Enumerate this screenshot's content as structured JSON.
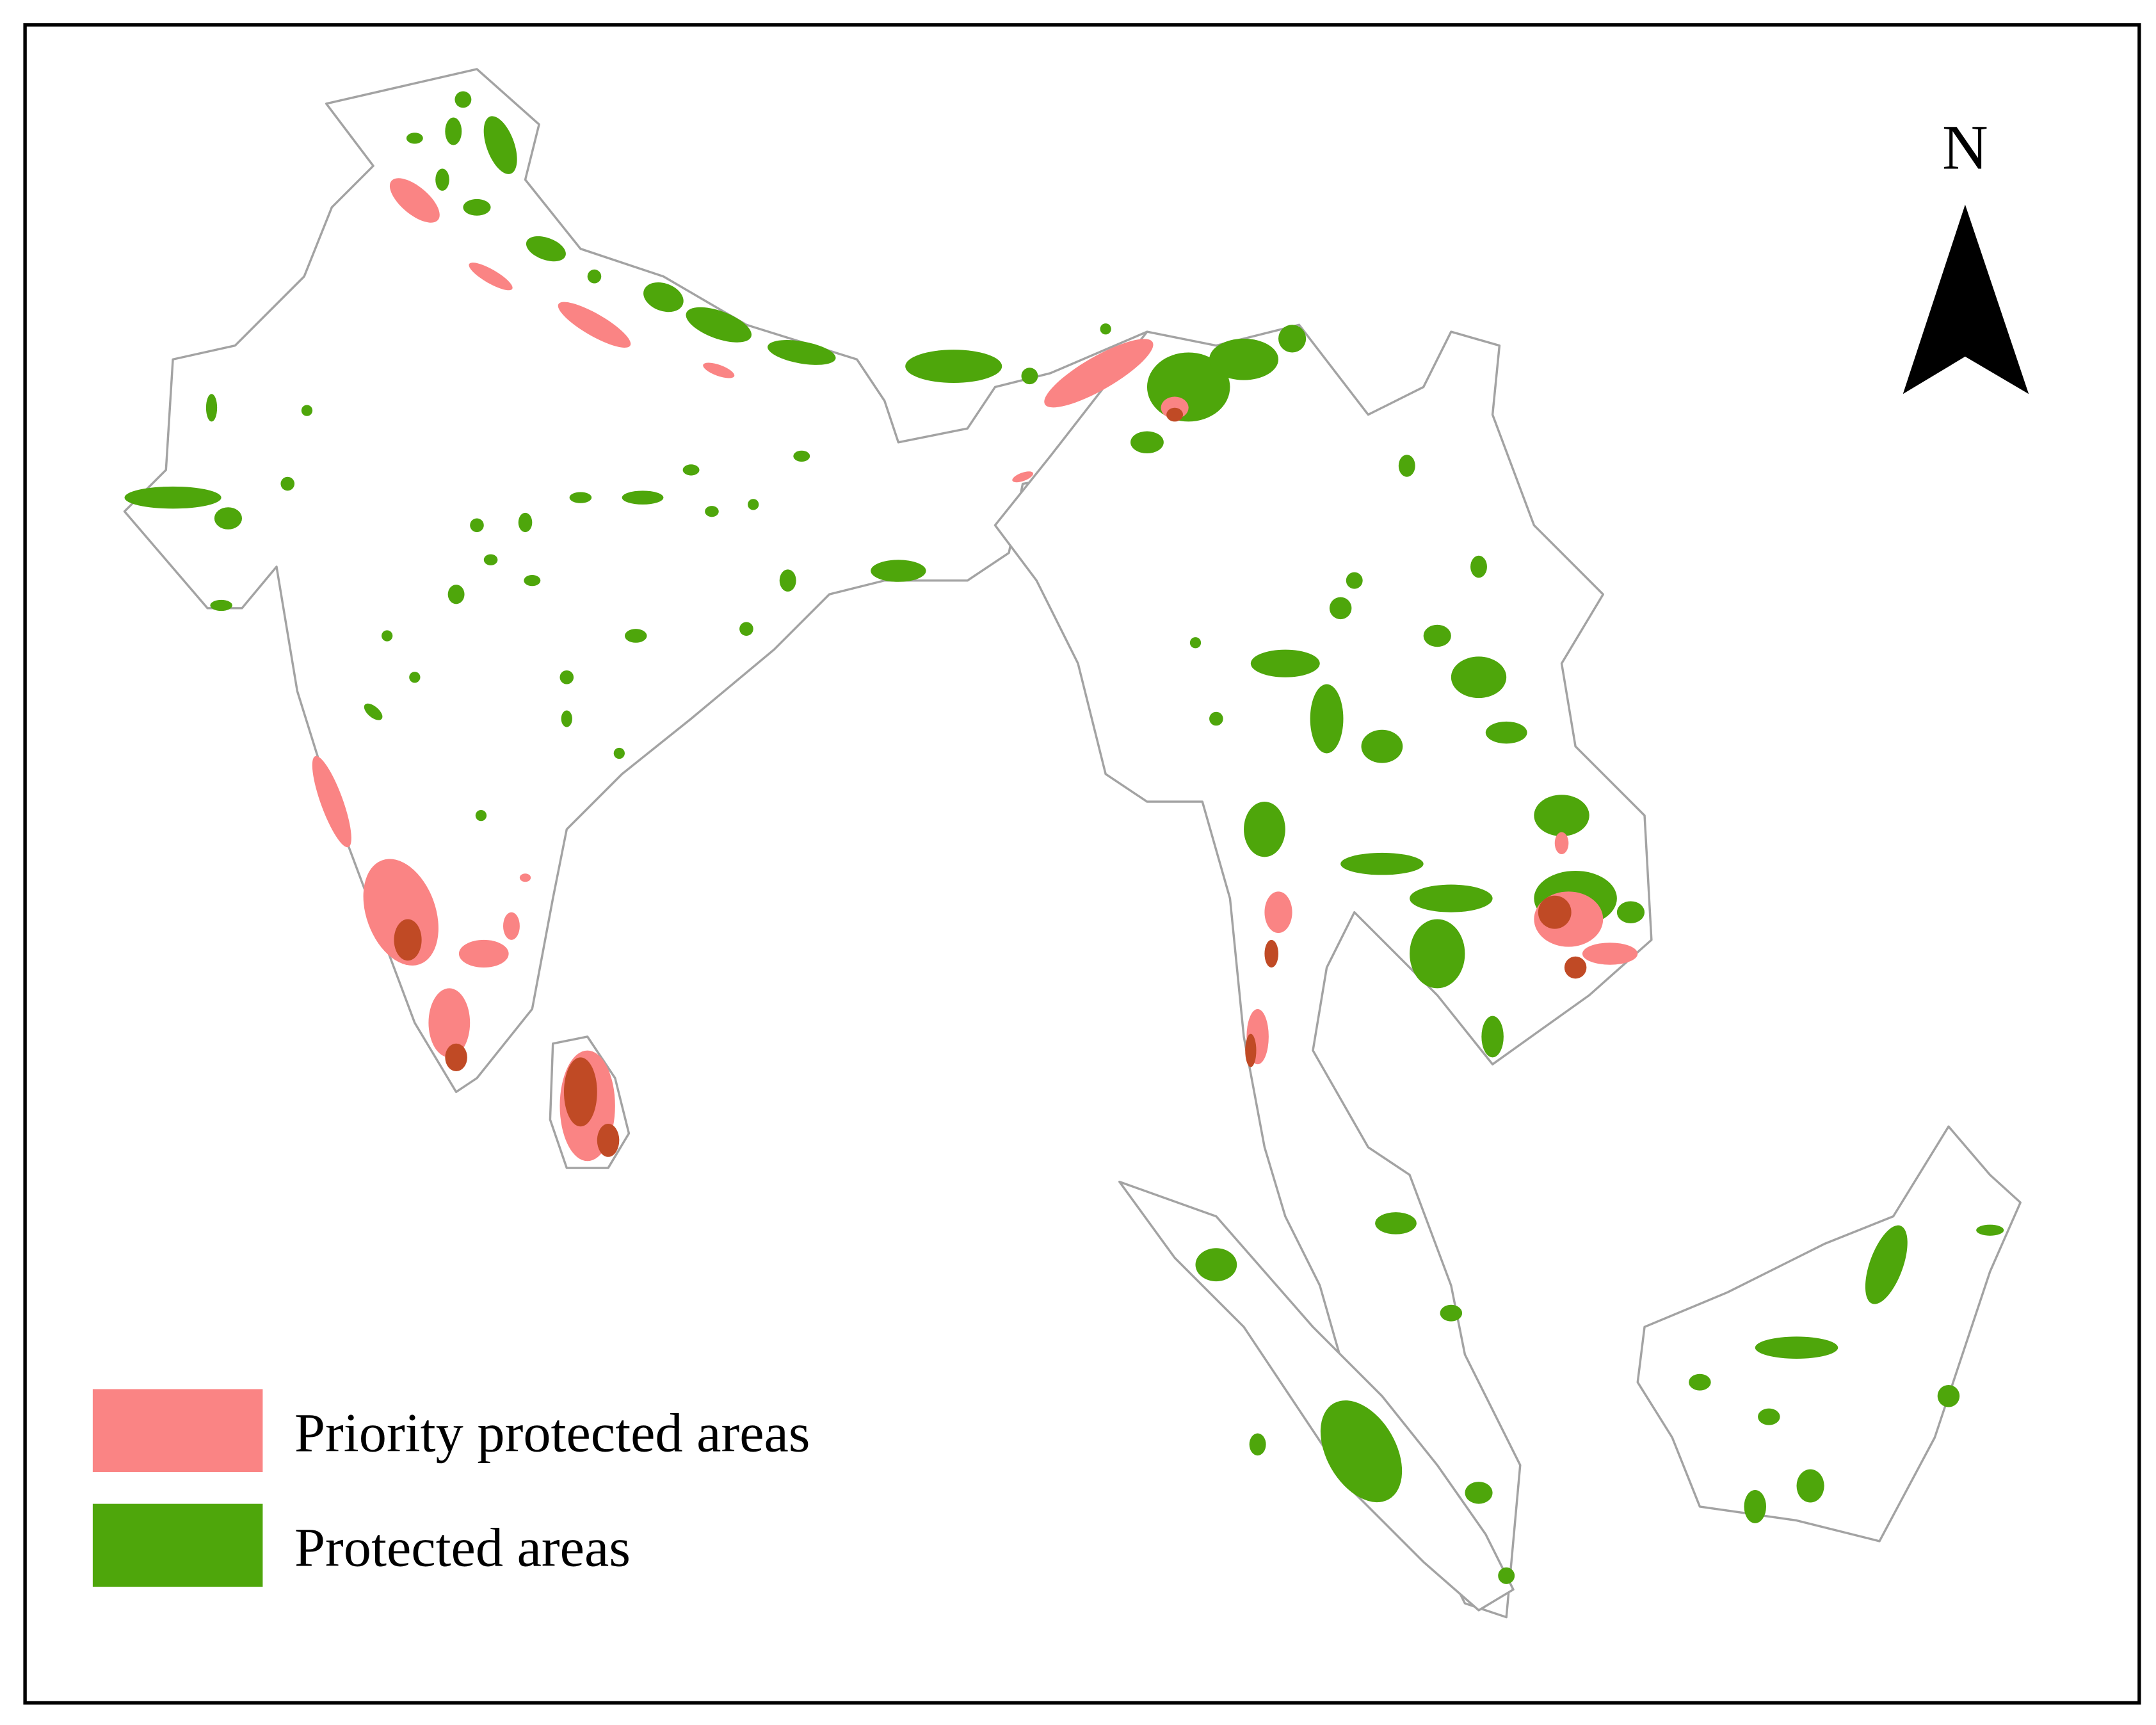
{
  "map": {
    "north_label": "N",
    "legend": [
      {
        "label": "Priority protected areas",
        "color": "#fa8484"
      },
      {
        "label": "Protected areas",
        "color": "#4ea60b"
      }
    ]
  }
}
